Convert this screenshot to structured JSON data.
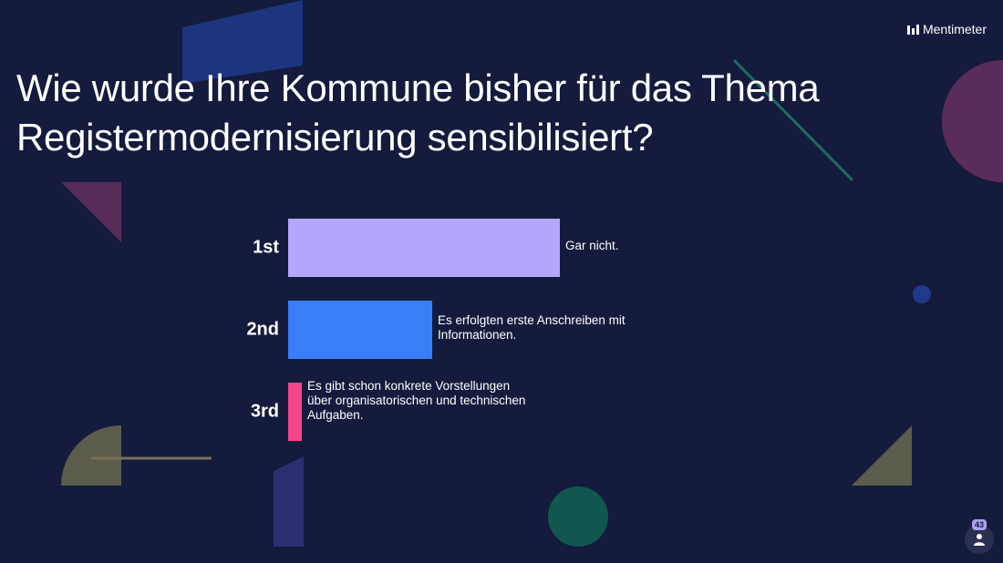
{
  "brand": {
    "name": "Mentimeter",
    "icon": "mentimeter-logo-icon"
  },
  "question": {
    "title": "Wie wurde Ihre Kommune bisher für das Thema Registermodernisierung sensibilisiert?"
  },
  "chart_data": {
    "type": "bar",
    "orientation": "horizontal",
    "categories": [
      "1st",
      "2nd",
      "3rd"
    ],
    "labels": [
      "Gar nicht.",
      "Es erfolgten erste Anschreiben mit Informationen.",
      "Es gibt schon konkrete Vorstellungen über organisatorischen und technischen Aufgaben."
    ],
    "values": [
      1.0,
      0.53,
      0.05
    ],
    "colors": [
      "#b3a7fb",
      "#3a7ef7",
      "#f6468a"
    ]
  },
  "participants": {
    "count": "43",
    "icon": "person-icon"
  }
}
